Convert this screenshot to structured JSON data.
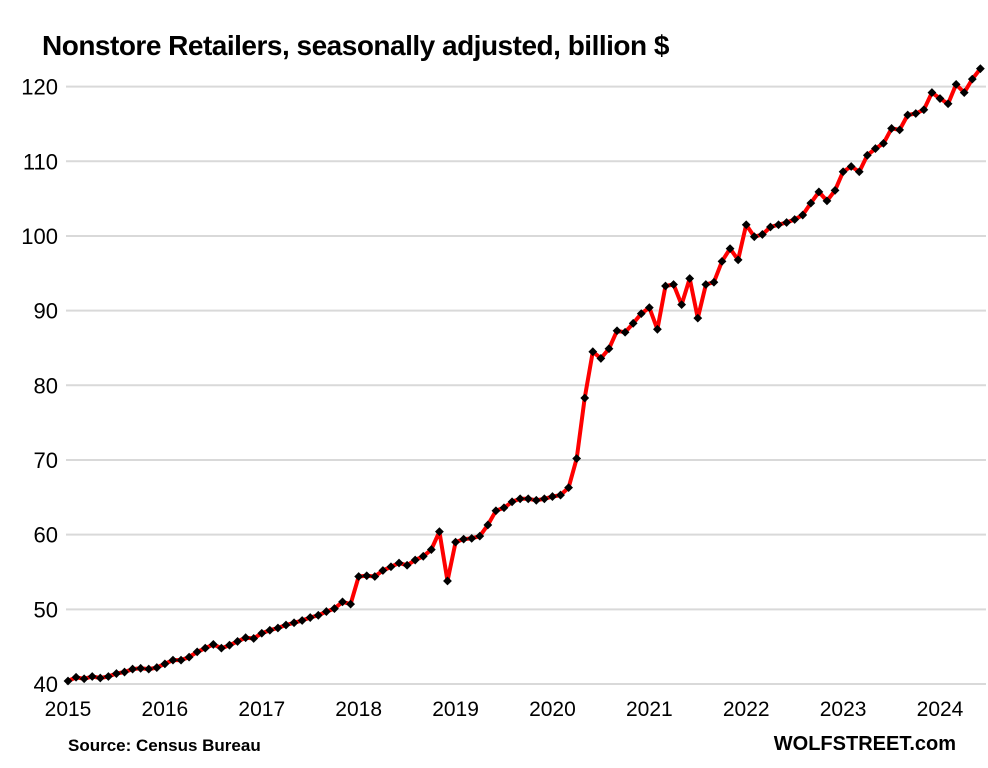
{
  "chart_data": {
    "type": "line",
    "title": "Nonstore Retailers, seasonally adjusted, billion $",
    "source": "Source: Census Bureau",
    "watermark": "WOLFSTREET.com",
    "x_monthly_from": "2015-01",
    "x_monthly_to": "2024-06",
    "x_tick_labels": [
      "2015",
      "2016",
      "2017",
      "2018",
      "2019",
      "2020",
      "2021",
      "2022",
      "2023",
      "2024"
    ],
    "y_ticks": [
      40,
      50,
      60,
      70,
      80,
      90,
      100,
      110,
      120
    ],
    "ylim": [
      40,
      123
    ],
    "grid": "horizontal-only",
    "legend": "none",
    "colors": {
      "line": "#fe0000",
      "marker": "#000000",
      "gridline": "#d9d9d9",
      "text": "#000000",
      "background": "#ffffff"
    },
    "series": [
      {
        "name": "Nonstore retailers sales, billion $",
        "marker": "diamond",
        "values": [
          40.4,
          40.9,
          40.7,
          41.0,
          40.8,
          41.0,
          41.4,
          41.6,
          42.0,
          42.1,
          42.0,
          42.2,
          42.7,
          43.2,
          43.2,
          43.6,
          44.3,
          44.8,
          45.3,
          44.8,
          45.2,
          45.7,
          46.2,
          46.1,
          46.8,
          47.2,
          47.5,
          47.9,
          48.2,
          48.5,
          48.9,
          49.2,
          49.7,
          50.1,
          51.0,
          50.7,
          54.4,
          54.5,
          54.4,
          55.2,
          55.7,
          56.2,
          55.9,
          56.6,
          57.1,
          58.0,
          60.4,
          53.8,
          59.0,
          59.4,
          59.5,
          59.8,
          61.3,
          63.2,
          63.6,
          64.4,
          64.8,
          64.8,
          64.6,
          64.8,
          65.1,
          65.3,
          66.3,
          70.2,
          78.3,
          84.5,
          83.6,
          84.9,
          87.3,
          87.1,
          88.3,
          89.6,
          90.4,
          87.5,
          93.3,
          93.5,
          90.8,
          94.3,
          89.0,
          93.5,
          93.8,
          96.6,
          98.3,
          96.8,
          101.5,
          99.9,
          100.2,
          101.2,
          101.5,
          101.8,
          102.2,
          102.8,
          104.4,
          105.9,
          104.7,
          106.1,
          108.6,
          109.3,
          108.6,
          110.8,
          111.7,
          112.4,
          114.4,
          114.2,
          116.2,
          116.4,
          116.9,
          119.2,
          118.4,
          117.7,
          120.3,
          119.2,
          121.0,
          122.4
        ]
      }
    ]
  }
}
